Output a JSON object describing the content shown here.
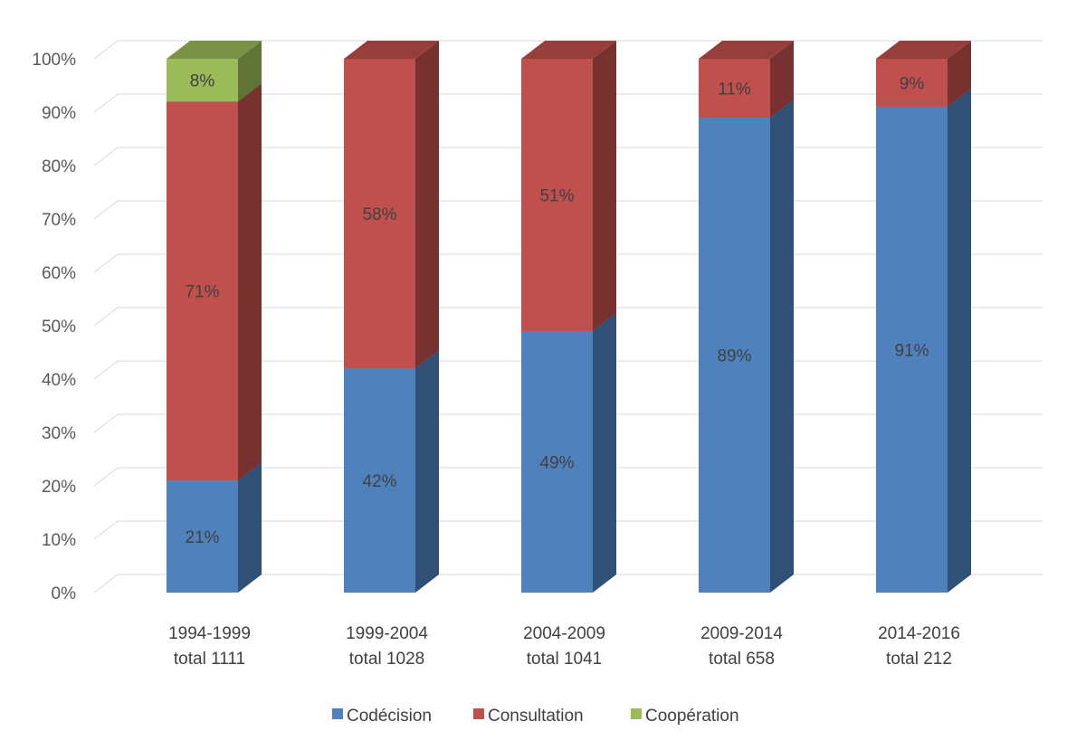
{
  "chart_data": {
    "type": "bar",
    "stacked": true,
    "three_d": true,
    "percent": true,
    "title": "",
    "xlabel": "",
    "ylabel": "",
    "ylim": [
      0,
      100
    ],
    "y_ticks": [
      "0%",
      "10%",
      "20%",
      "30%",
      "40%",
      "50%",
      "60%",
      "70%",
      "80%",
      "90%",
      "100%"
    ],
    "grid": true,
    "legend_position": "bottom",
    "categories": [
      [
        "1994-1999",
        "total 1111"
      ],
      [
        "1999-2004",
        "total 1028"
      ],
      [
        "2004-2009",
        "total 1041"
      ],
      [
        "2009-2014",
        "total 658"
      ],
      [
        "2014-2016",
        "total 212"
      ]
    ],
    "series": [
      {
        "name": "Codécision",
        "color": "#4f81bd",
        "values": [
          21,
          42,
          49,
          89,
          91
        ],
        "labels": [
          "21%",
          "42%",
          "49%",
          "89%",
          "91%"
        ]
      },
      {
        "name": "Consultation",
        "color": "#c0504d",
        "values": [
          71,
          58,
          51,
          11,
          9
        ],
        "labels": [
          "71%",
          "58%",
          "51%",
          "11%",
          "9%"
        ]
      },
      {
        "name": "Coopération",
        "color": "#9bbb59",
        "values": [
          8,
          0,
          0,
          0,
          0
        ],
        "labels": [
          "8%",
          "",
          "",
          "",
          ""
        ]
      }
    ]
  }
}
